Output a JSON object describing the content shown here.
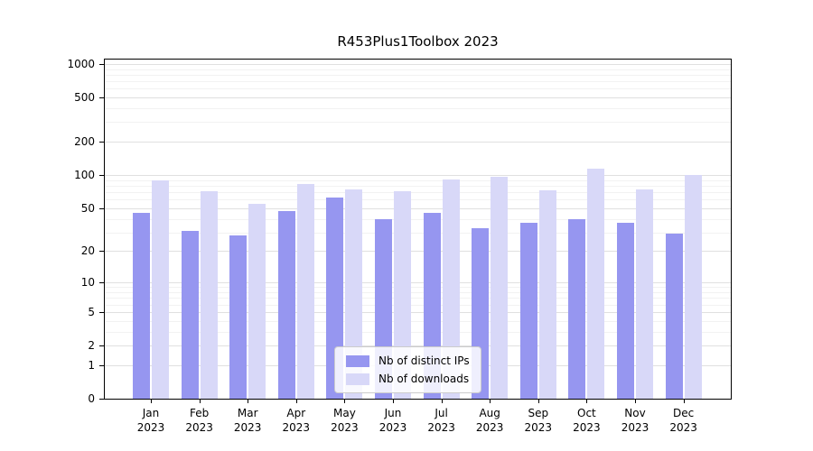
{
  "chart_data": {
    "type": "bar",
    "title": "R453Plus1Toolbox 2023",
    "categories": [
      "Jan 2023",
      "Feb 2023",
      "Mar 2023",
      "Apr 2023",
      "May 2023",
      "Jun 2023",
      "Jul 2023",
      "Aug 2023",
      "Sep 2023",
      "Oct 2023",
      "Nov 2023",
      "Dec 2023"
    ],
    "series": [
      {
        "name": "Nb of distinct IPs",
        "color": "#9696F0",
        "values": [
          45,
          31,
          28,
          47,
          62,
          40,
          45,
          33,
          37,
          40,
          37,
          29
        ]
      },
      {
        "name": "Nb of downloads",
        "color": "#D8D8F8",
        "values": [
          89,
          72,
          55,
          83,
          74,
          71,
          92,
          97,
          73,
          115,
          74,
          100
        ]
      }
    ],
    "y_axis": {
      "scale": "log(1+y)",
      "ticks": [
        0,
        1,
        2,
        5,
        10,
        20,
        50,
        100,
        200,
        500,
        1000
      ],
      "range": [
        0,
        1150
      ]
    },
    "x_axis": {
      "label": ""
    },
    "ylabel": "",
    "xlabel": "",
    "grid": true,
    "legend": {
      "position": "inside-bottom-center",
      "labels": [
        "Nb of distinct IPs",
        "Nb of downloads"
      ]
    }
  }
}
